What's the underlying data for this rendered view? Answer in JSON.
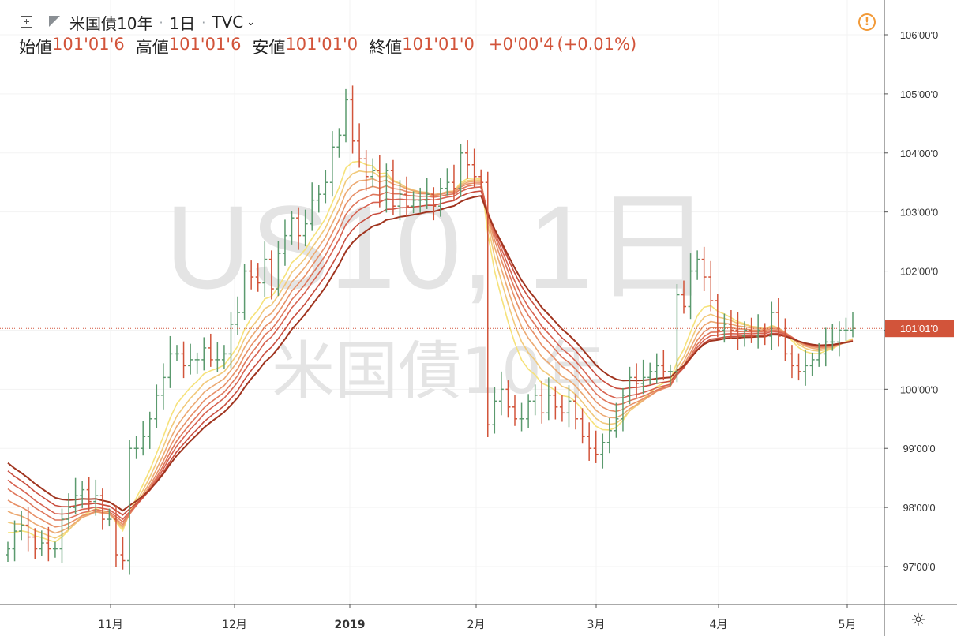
{
  "header": {
    "symbol_title": "米国債10年",
    "interval": "1日",
    "source": "TVC"
  },
  "ohlc": {
    "open_label": "始値",
    "open": "101'01'6",
    "high_label": "高値",
    "high": "101'01'6",
    "low_label": "安値",
    "low": "101'01'0",
    "close_label": "終値",
    "close": "101'01'0",
    "change": "+0'00'4",
    "change_pct": "(+0.01%)"
  },
  "watermark": {
    "line1": "US10, 1日",
    "line2": "米国債10年"
  },
  "icons": {
    "expand": "expand-box-icon",
    "collapse": "collapse-triangle-icon",
    "warning": "warning-icon",
    "settings": "gear-icon"
  },
  "colors": {
    "up": "#5b9a6e",
    "down": "#d2543a",
    "last_price_bg": "#d2543a",
    "ribbon": [
      "#f6e27a",
      "#f1c97a",
      "#eca972",
      "#e78f67",
      "#df775c",
      "#d76351",
      "#c94d3e",
      "#a0341f"
    ]
  },
  "chart_data": {
    "type": "ohlc",
    "price_axis_ticks": [
      "97'00'0",
      "98'00'0",
      "99'00'0",
      "100'00'0",
      "101'00'0",
      "102'00'0",
      "103'00'0",
      "104'00'0",
      "105'00'0",
      "106'00'0"
    ],
    "price_axis_values": [
      97,
      98,
      99,
      100,
      101,
      102,
      103,
      104,
      105,
      106
    ],
    "time_axis_ticks": [
      "11月",
      "12月",
      "2019",
      "2月",
      "3月",
      "4月",
      "5月"
    ],
    "ylim": [
      96.3,
      106.5
    ],
    "last_price_label": "101'01'0",
    "last_price": 101.03,
    "close_series": [
      97.3,
      97.6,
      97.7,
      97.5,
      97.3,
      97.4,
      97.3,
      97.3,
      97.8,
      98.0,
      98.2,
      98.3,
      98.1,
      98.2,
      97.8,
      97.8,
      97.2,
      97.1,
      99.0,
      99.0,
      99.2,
      99.5,
      99.9,
      100.2,
      100.6,
      100.6,
      100.4,
      100.5,
      100.5,
      100.7,
      100.5,
      100.5,
      100.6,
      101.1,
      101.3,
      102.0,
      101.9,
      101.8,
      102.2,
      101.7,
      102.3,
      102.6,
      102.9,
      102.6,
      102.8,
      103.2,
      103.3,
      103.5,
      104.1,
      104.3,
      104.9,
      104.2,
      103.9,
      103.6,
      103.7,
      103.2,
      103.7,
      103.1,
      103.3,
      103.1,
      103.2,
      103.2,
      103.3,
      103.1,
      103.4,
      103.5,
      103.4,
      104.0,
      103.8,
      103.6,
      103.5,
      99.4,
      99.8,
      100.0,
      99.7,
      99.5,
      99.5,
      99.8,
      99.9,
      99.6,
      99.9,
      99.7,
      99.6,
      99.8,
      99.5,
      99.2,
      99.0,
      98.9,
      99.1,
      99.3,
      99.5,
      99.9,
      100.2,
      100.1,
      100.2,
      100.3,
      100.4,
      100.3,
      100.3,
      101.6,
      101.4,
      102.0,
      102.2,
      101.9,
      101.5,
      101.0,
      101.1,
      101.0,
      100.9,
      101.0,
      100.9,
      101.0,
      100.9,
      101.3,
      100.9,
      100.6,
      100.4,
      100.3,
      100.4,
      100.5,
      100.6,
      100.8,
      100.8,
      101.0,
      101.0,
      101.03
    ]
  }
}
